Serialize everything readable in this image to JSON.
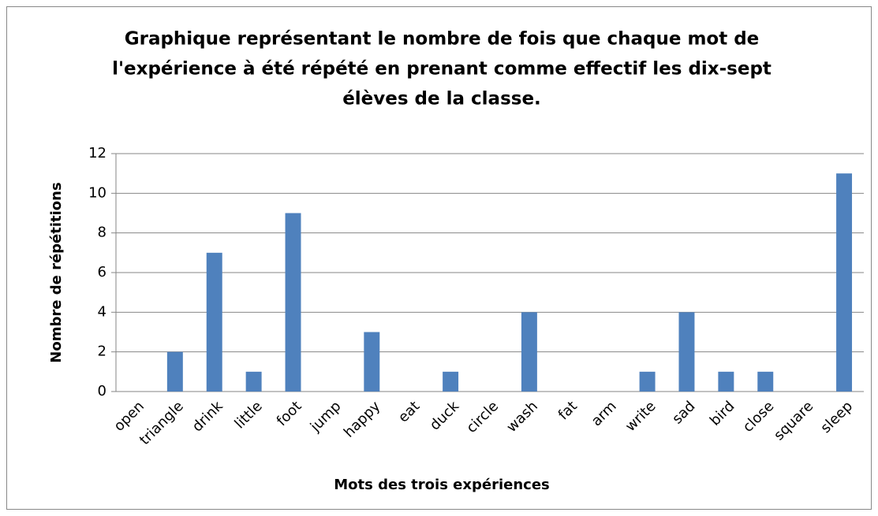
{
  "chart_data": {
    "type": "bar",
    "title": [
      "Graphique représentant le nombre de fois que chaque mot de",
      "l'expérience à été répété en prenant comme effectif les dix-sept",
      "élèves de la classe."
    ],
    "x_label": "Mots des trois expériences",
    "y_label": "Nombre de répétitions",
    "categories": [
      "open",
      "triangle",
      "drink",
      "little",
      "foot",
      "jump",
      "happy",
      "eat",
      "duck",
      "circle",
      "wash",
      "fat",
      "arm",
      "write",
      "sad",
      "bird",
      "close",
      "square",
      "sleep"
    ],
    "values": [
      0,
      2,
      7,
      1,
      9,
      0,
      3,
      0,
      1,
      0,
      4,
      0,
      0,
      1,
      4,
      1,
      1,
      0,
      11
    ],
    "color": "#4f81bd",
    "ylim": [
      0,
      12
    ],
    "yticks": [
      0,
      2,
      4,
      6,
      8,
      10,
      12
    ],
    "grid": true
  }
}
